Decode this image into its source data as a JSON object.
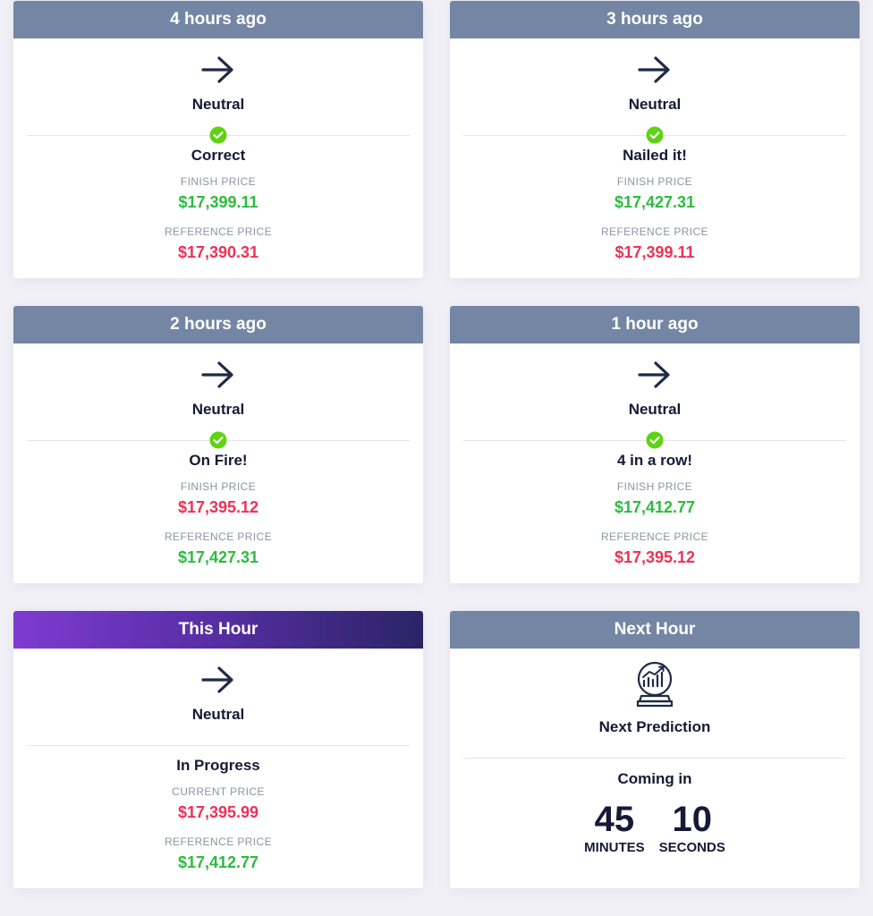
{
  "colors": {
    "header": "#7486a4",
    "active_header_start": "#7e3bd0",
    "active_header_end": "#2a2466",
    "green": "#2dbb3f",
    "red": "#ee3155",
    "check_green": "#5fd312",
    "text": "#141a36",
    "muted": "#8f93a6"
  },
  "cards": [
    {
      "header": "4 hours ago",
      "icon": "arrow-right-icon",
      "prediction": "Neutral",
      "status_icon": "check-circle-icon",
      "result": "Correct",
      "finish_label": "FINISH PRICE",
      "finish_price": "$17,399.11",
      "finish_color": "green",
      "reference_label": "REFERENCE PRICE",
      "reference_price": "$17,390.31",
      "reference_color": "red"
    },
    {
      "header": "3 hours ago",
      "icon": "arrow-right-icon",
      "prediction": "Neutral",
      "status_icon": "check-circle-icon",
      "result": "Nailed it!",
      "finish_label": "FINISH PRICE",
      "finish_price": "$17,427.31",
      "finish_color": "green",
      "reference_label": "REFERENCE PRICE",
      "reference_price": "$17,399.11",
      "reference_color": "red"
    },
    {
      "header": "2 hours ago",
      "icon": "arrow-right-icon",
      "prediction": "Neutral",
      "status_icon": "check-circle-icon",
      "result": "On Fire!",
      "finish_label": "FINISH PRICE",
      "finish_price": "$17,395.12",
      "finish_color": "red",
      "reference_label": "REFERENCE PRICE",
      "reference_price": "$17,427.31",
      "reference_color": "green"
    },
    {
      "header": "1 hour ago",
      "icon": "arrow-right-icon",
      "prediction": "Neutral",
      "status_icon": "check-circle-icon",
      "result": "4 in a row!",
      "finish_label": "FINISH PRICE",
      "finish_price": "$17,412.77",
      "finish_color": "green",
      "reference_label": "REFERENCE PRICE",
      "reference_price": "$17,395.12",
      "reference_color": "red"
    }
  ],
  "current": {
    "header": "This Hour",
    "icon": "arrow-right-icon",
    "prediction": "Neutral",
    "result": "In Progress",
    "current_label": "CURRENT PRICE",
    "current_price": "$17,395.99",
    "current_color": "red",
    "reference_label": "REFERENCE PRICE",
    "reference_price": "$17,412.77",
    "reference_color": "green"
  },
  "next": {
    "header": "Next Hour",
    "icon": "crystal-ball-chart-icon",
    "title": "Next Prediction",
    "coming_in": "Coming in",
    "minutes": "45",
    "minutes_label": "MINUTES",
    "seconds": "10",
    "seconds_label": "SECONDS"
  }
}
